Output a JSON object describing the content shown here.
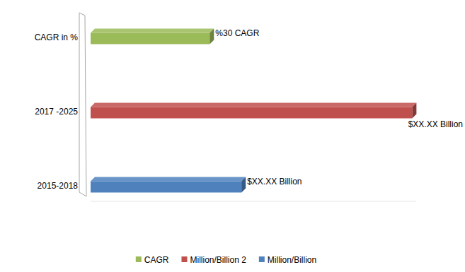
{
  "chart_data": {
    "type": "bar",
    "orientation": "horizontal",
    "categories": [
      "2015-2018",
      "2017 -2025",
      "CAGR in %"
    ],
    "series": [
      {
        "name": "CAGR",
        "color": "#9bbb59",
        "values": [
          null,
          null,
          30
        ],
        "value_labels": [
          null,
          null,
          "%30 CAGR"
        ]
      },
      {
        "name": "Million/Billion 2",
        "color": "#c0504d",
        "values": [
          null,
          81,
          null
        ],
        "value_labels": [
          null,
          "$XX.XX Billion",
          null
        ]
      },
      {
        "name": "Million/Billion",
        "color": "#4f81bd",
        "values": [
          38,
          null,
          null
        ],
        "value_labels": [
          "$XX.XX Billion",
          null,
          null
        ]
      }
    ],
    "xlim": [
      0,
      82
    ],
    "tick_labels": "y",
    "grid": false,
    "legend": "bottom",
    "data_labels": true
  }
}
